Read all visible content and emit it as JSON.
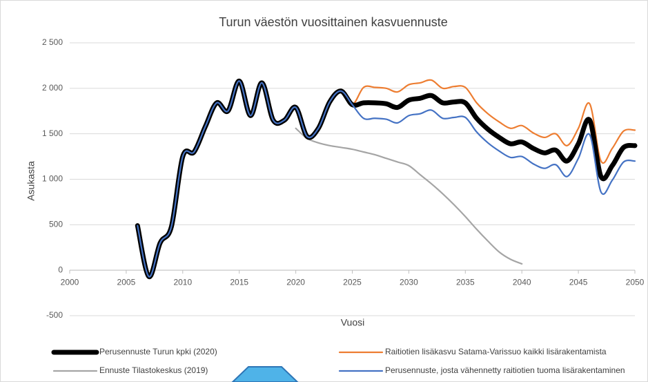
{
  "chart_data": {
    "type": "line",
    "title": "Turun väestön vuosittainen kasvuennuste",
    "x_label": "Vuosi",
    "y_label": "Asukasta",
    "x": [
      2006,
      2007,
      2008,
      2009,
      2010,
      2011,
      2012,
      2013,
      2014,
      2015,
      2016,
      2017,
      2018,
      2019,
      2020,
      2021,
      2022,
      2023,
      2024,
      2025,
      2026,
      2027,
      2028,
      2029,
      2030,
      2031,
      2032,
      2033,
      2034,
      2035,
      2036,
      2037,
      2038,
      2039,
      2040,
      2041,
      2042,
      2043,
      2044,
      2045,
      2046,
      2047,
      2048,
      2049,
      2050
    ],
    "series": [
      {
        "name": "Perusennuste Turun kpki (2020)",
        "color": "#000000",
        "values": [
          490,
          -70,
          300,
          480,
          1250,
          1300,
          1580,
          1840,
          1750,
          2080,
          1700,
          2060,
          1650,
          1650,
          1790,
          1470,
          1560,
          1850,
          1970,
          1820,
          1840,
          1840,
          1830,
          1790,
          1870,
          1890,
          1920,
          1840,
          1850,
          1840,
          1670,
          1550,
          1460,
          1390,
          1410,
          1340,
          1290,
          1320,
          1200,
          1390,
          1650,
          1030,
          1150,
          1350,
          1370
        ]
      },
      {
        "name": "Raitiotien lisäkasvu Satama-Varissuo kaikki lisärakentamista",
        "color": "#ed7d31",
        "values": [
          null,
          null,
          null,
          null,
          null,
          null,
          null,
          null,
          null,
          null,
          null,
          null,
          null,
          null,
          null,
          null,
          null,
          null,
          1970,
          1820,
          2010,
          2010,
          2000,
          1960,
          2040,
          2060,
          2090,
          2000,
          2020,
          2010,
          1840,
          1720,
          1630,
          1560,
          1590,
          1510,
          1460,
          1500,
          1370,
          1560,
          1830,
          1200,
          1340,
          1530,
          1540
        ]
      },
      {
        "name": "Ennuste Tilastokeskus (2019)",
        "color": "#a5a5a5",
        "values": [
          null,
          null,
          null,
          null,
          null,
          null,
          null,
          null,
          null,
          null,
          null,
          null,
          null,
          null,
          1560,
          1450,
          1400,
          1370,
          1350,
          1330,
          1300,
          1270,
          1230,
          1190,
          1150,
          1050,
          950,
          840,
          720,
          590,
          450,
          320,
          200,
          120,
          70,
          null,
          null,
          null,
          null,
          null,
          null,
          null,
          null,
          null,
          null
        ]
      },
      {
        "name": "Perusennuste, josta vähennetty raitiotien tuoma lisärakentaminen",
        "color": "#4472c4",
        "values": [
          490,
          -70,
          300,
          480,
          1250,
          1300,
          1580,
          1840,
          1750,
          2080,
          1700,
          2060,
          1650,
          1650,
          1790,
          1470,
          1560,
          1850,
          1970,
          1820,
          1670,
          1670,
          1660,
          1620,
          1700,
          1720,
          1760,
          1670,
          1680,
          1680,
          1520,
          1400,
          1310,
          1240,
          1250,
          1170,
          1120,
          1160,
          1030,
          1230,
          1490,
          860,
          990,
          1190,
          1200
        ]
      }
    ],
    "xlim": [
      2000,
      2050
    ],
    "xticks": [
      2000,
      2005,
      2010,
      2015,
      2020,
      2025,
      2030,
      2035,
      2040,
      2045,
      2050
    ],
    "ylim": [
      -500,
      2500
    ],
    "yticks": [
      {
        "value": 2500,
        "label": "2 500"
      },
      {
        "value": 2000,
        "label": "2 000"
      },
      {
        "value": 1500,
        "label": "1 500"
      },
      {
        "value": 1000,
        "label": "1 000"
      },
      500,
      0,
      -500
    ],
    "grid": true
  }
}
